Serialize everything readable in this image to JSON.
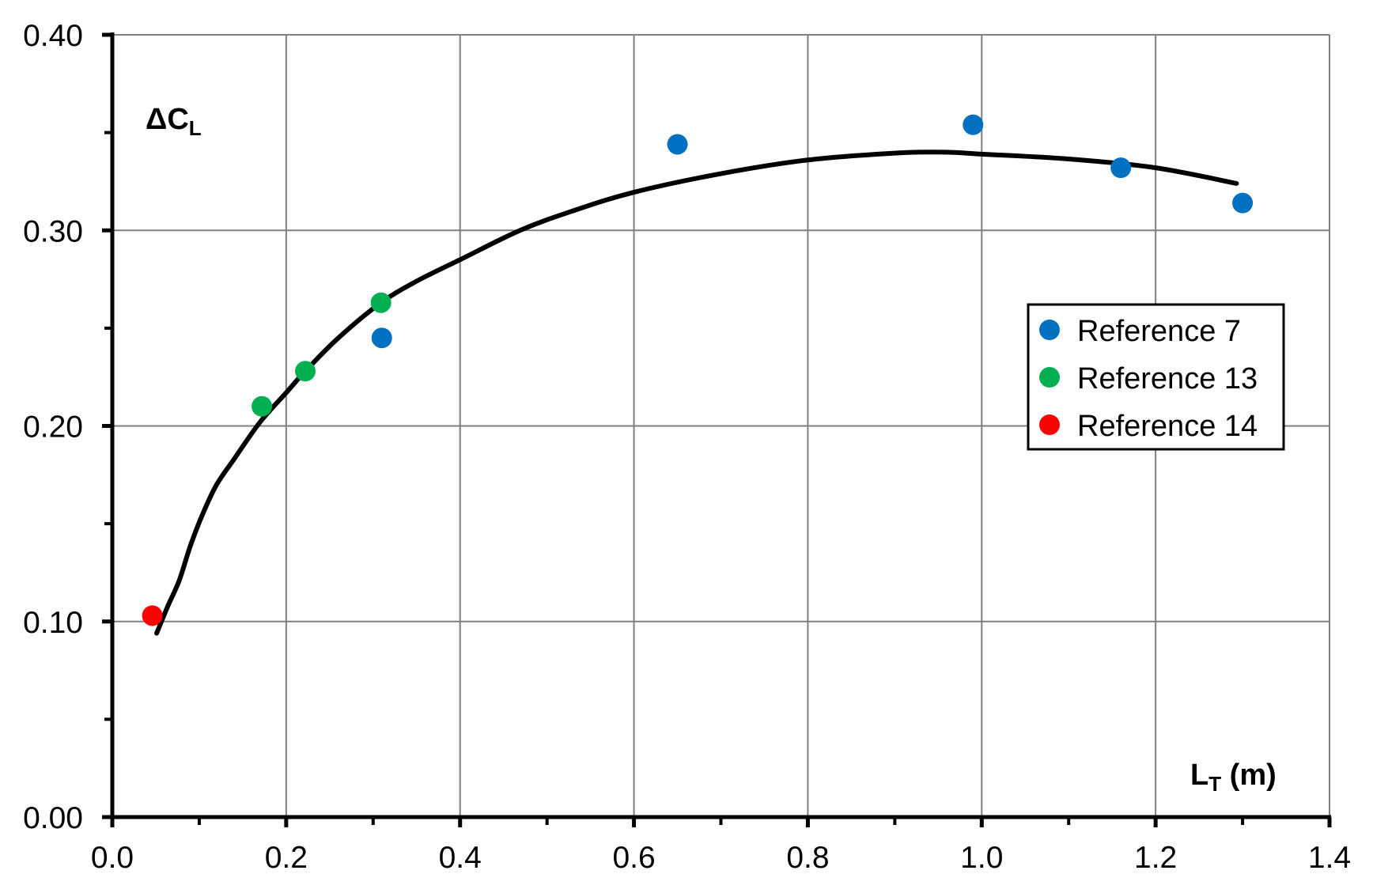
{
  "chart_data": {
    "type": "scatter",
    "title": "",
    "xlabel": "L_T (m)",
    "ylabel": "ΔC_L",
    "xlim": [
      0.0,
      1.4
    ],
    "ylim": [
      0.0,
      0.4
    ],
    "grid": true,
    "legend_position": "right-center (inside plot)",
    "x_ticks": [
      "0.0",
      "0.2",
      "0.4",
      "0.6",
      "0.8",
      "1.0",
      "1.2",
      "1.4"
    ],
    "y_ticks": [
      "0.00",
      "0.10",
      "0.20",
      "0.30",
      "0.40"
    ],
    "series": [
      {
        "name": "Reference 7",
        "color": "#0070C0",
        "marker": "circle",
        "points": [
          {
            "x": 0.31,
            "y": 0.245
          },
          {
            "x": 0.65,
            "y": 0.344
          },
          {
            "x": 0.99,
            "y": 0.354
          },
          {
            "x": 1.16,
            "y": 0.332
          },
          {
            "x": 1.3,
            "y": 0.314
          }
        ]
      },
      {
        "name": "Reference 13",
        "color": "#00B050",
        "marker": "circle",
        "points": [
          {
            "x": 0.172,
            "y": 0.21
          },
          {
            "x": 0.222,
            "y": 0.228
          },
          {
            "x": 0.309,
            "y": 0.263
          }
        ]
      },
      {
        "name": "Reference 14",
        "color": "#FF0000",
        "marker": "circle",
        "points": [
          {
            "x": 0.046,
            "y": 0.103
          }
        ]
      }
    ],
    "fit_curve": {
      "name": "trend curve",
      "color": "#000000",
      "type": "line",
      "points": [
        {
          "x": 0.051,
          "y": 0.094
        },
        {
          "x": 0.064,
          "y": 0.108
        },
        {
          "x": 0.077,
          "y": 0.121
        },
        {
          "x": 0.09,
          "y": 0.139
        },
        {
          "x": 0.104,
          "y": 0.155
        },
        {
          "x": 0.12,
          "y": 0.17
        },
        {
          "x": 0.14,
          "y": 0.183
        },
        {
          "x": 0.17,
          "y": 0.202
        },
        {
          "x": 0.2,
          "y": 0.217
        },
        {
          "x": 0.222,
          "y": 0.228
        },
        {
          "x": 0.26,
          "y": 0.245
        },
        {
          "x": 0.309,
          "y": 0.263
        },
        {
          "x": 0.35,
          "y": 0.274
        },
        {
          "x": 0.4,
          "y": 0.285
        },
        {
          "x": 0.469,
          "y": 0.3
        },
        {
          "x": 0.53,
          "y": 0.31
        },
        {
          "x": 0.6,
          "y": 0.3195
        },
        {
          "x": 0.7,
          "y": 0.329
        },
        {
          "x": 0.8,
          "y": 0.336
        },
        {
          "x": 0.9,
          "y": 0.3395
        },
        {
          "x": 0.957,
          "y": 0.34
        },
        {
          "x": 1.0,
          "y": 0.339
        },
        {
          "x": 1.1,
          "y": 0.3365
        },
        {
          "x": 1.2,
          "y": 0.332
        },
        {
          "x": 1.293,
          "y": 0.324
        }
      ]
    }
  },
  "labels": {
    "y_title_main": "ΔC",
    "y_title_sub": "L",
    "x_title_main": "L",
    "x_title_sub": "T",
    "x_title_unit": " (m)"
  },
  "legend": {
    "items": [
      {
        "label": "Reference 7",
        "color": "#0070C0"
      },
      {
        "label": "Reference 13",
        "color": "#00B050"
      },
      {
        "label": "Reference 14",
        "color": "#FF0000"
      }
    ]
  },
  "colors": {
    "grid": "#808080",
    "axis": "#000000",
    "curve": "#000000"
  }
}
